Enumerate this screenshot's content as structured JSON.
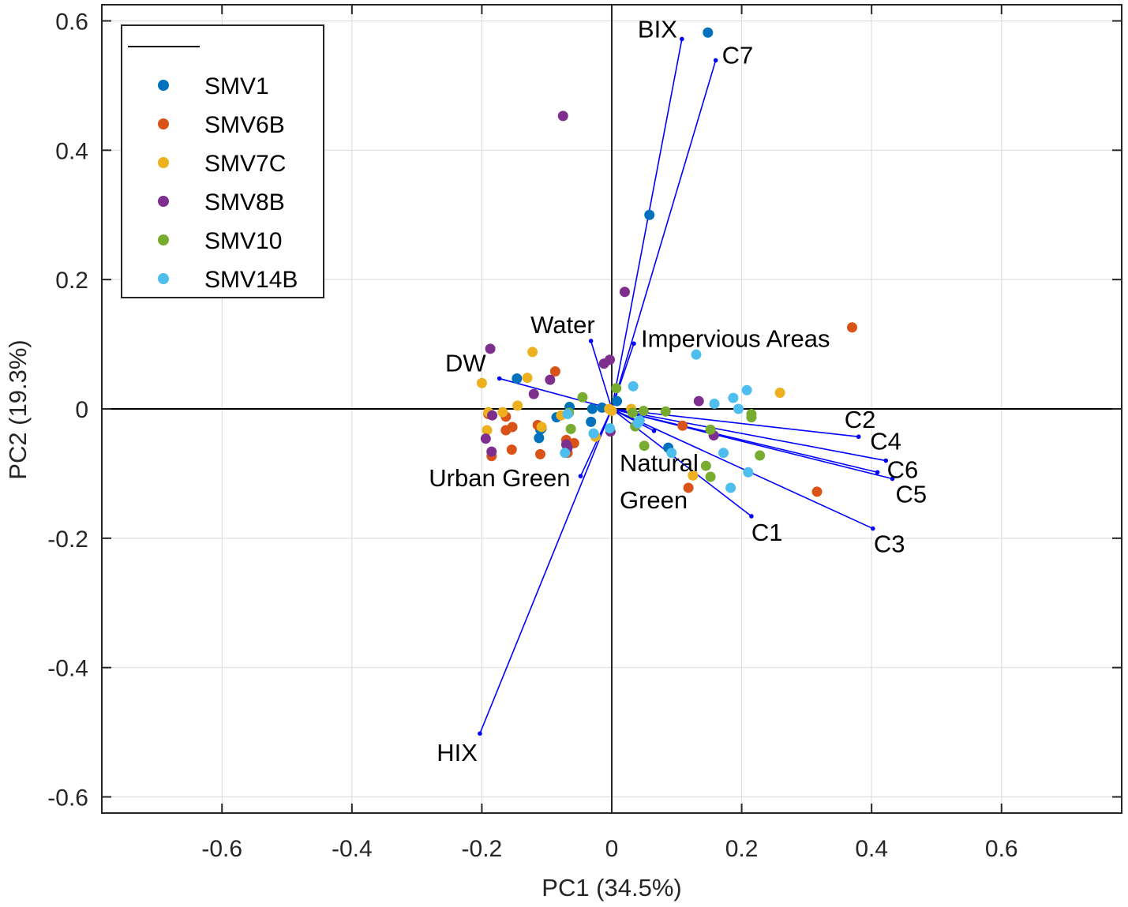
{
  "chart_data": {
    "type": "scatter",
    "subtype": "pca-biplot",
    "title": "",
    "xlabel": "PC1 (34.5%)",
    "ylabel": "PC2 (19.3%)",
    "xlim": [
      -0.785,
      0.785
    ],
    "ylim": [
      -0.625,
      0.625
    ],
    "xticks": [
      -0.6,
      -0.4,
      -0.2,
      0,
      0.2,
      0.4,
      0.6
    ],
    "yticks": [
      -0.6,
      -0.4,
      -0.2,
      0,
      0.2,
      0.4,
      0.6
    ],
    "xtick_labels": [
      "-0.6",
      "-0.4",
      "-0.2",
      "0",
      "0.2",
      "0.4",
      "0.6"
    ],
    "ytick_labels": [
      "-0.6",
      "-0.4",
      "-0.2",
      "0",
      "0.2",
      "0.4",
      "0.6"
    ],
    "grid": true,
    "legend_position": "top-left",
    "loadings_color": "#0000ff",
    "loadings": [
      {
        "name": "BIX",
        "x": 0.108,
        "y": 0.572
      },
      {
        "name": "C7",
        "x": 0.16,
        "y": 0.539
      },
      {
        "name": "Water",
        "x": -0.032,
        "y": 0.105
      },
      {
        "name": "Impervious Areas",
        "x": 0.034,
        "y": 0.101
      },
      {
        "name": "DW",
        "x": -0.173,
        "y": 0.047
      },
      {
        "name": "C2",
        "x": 0.38,
        "y": -0.043
      },
      {
        "name": "C4",
        "x": 0.422,
        "y": -0.08
      },
      {
        "name": "C6",
        "x": 0.409,
        "y": -0.098
      },
      {
        "name": "C5",
        "x": 0.432,
        "y": -0.108
      },
      {
        "name": "C3",
        "x": 0.402,
        "y": -0.185
      },
      {
        "name": "C1",
        "x": 0.215,
        "y": -0.166
      },
      {
        "name": "Natural Green",
        "x": 0.065,
        "y": -0.034
      },
      {
        "name": "Urban Green",
        "x": -0.048,
        "y": -0.104
      },
      {
        "name": "HIX",
        "x": -0.203,
        "y": -0.502
      }
    ],
    "series": [
      {
        "name": "SMV1",
        "color": "#0072bd",
        "points": [
          [
            0.148,
            0.582
          ],
          [
            0.058,
            0.3
          ],
          [
            0.008,
            0.012
          ],
          [
            -0.015,
            0.002
          ],
          [
            -0.03,
            0.0
          ],
          [
            -0.032,
            -0.02
          ],
          [
            -0.065,
            0.003
          ],
          [
            -0.085,
            -0.013
          ],
          [
            -0.11,
            -0.032
          ],
          [
            -0.112,
            -0.045
          ],
          [
            -0.108,
            -0.03
          ],
          [
            -0.146,
            0.047
          ],
          [
            0.087,
            -0.06
          ]
        ]
      },
      {
        "name": "SMV6B",
        "color": "#d95319",
        "points": [
          [
            0.37,
            0.126
          ],
          [
            0.316,
            -0.128
          ],
          [
            0.109,
            -0.026
          ],
          [
            0.118,
            -0.122
          ],
          [
            -0.087,
            0.058
          ],
          [
            -0.07,
            -0.048
          ],
          [
            -0.068,
            -0.068
          ],
          [
            -0.058,
            -0.053
          ],
          [
            -0.11,
            -0.07
          ],
          [
            -0.114,
            -0.025
          ],
          [
            -0.154,
            -0.063
          ],
          [
            -0.163,
            -0.033
          ],
          [
            -0.163,
            -0.012
          ],
          [
            -0.185,
            -0.073
          ],
          [
            -0.19,
            -0.008
          ],
          [
            -0.153,
            -0.028
          ]
        ]
      },
      {
        "name": "SMV7C",
        "color": "#edb120",
        "points": [
          [
            0.259,
            0.025
          ],
          [
            0.125,
            -0.103
          ],
          [
            -0.122,
            0.088
          ],
          [
            -0.13,
            0.048
          ],
          [
            -0.2,
            0.04
          ],
          [
            -0.145,
            0.005
          ],
          [
            -0.19,
            -0.005
          ],
          [
            -0.192,
            -0.033
          ],
          [
            -0.108,
            -0.028
          ],
          [
            -0.025,
            -0.043
          ],
          [
            0.0,
            -0.003
          ],
          [
            -0.004,
            0.0
          ],
          [
            0.03,
            0.0
          ],
          [
            -0.168,
            -0.005
          ],
          [
            -0.078,
            -0.01
          ]
        ]
      },
      {
        "name": "SMV8B",
        "color": "#7e2f8e",
        "points": [
          [
            -0.075,
            0.453
          ],
          [
            0.02,
            0.181
          ],
          [
            -0.187,
            0.093
          ],
          [
            -0.095,
            0.045
          ],
          [
            -0.12,
            0.023
          ],
          [
            -0.012,
            0.07
          ],
          [
            -0.003,
            0.076
          ],
          [
            -0.07,
            -0.055
          ],
          [
            -0.068,
            -0.06
          ],
          [
            0.134,
            0.012
          ],
          [
            0.157,
            -0.041
          ],
          [
            -0.194,
            -0.046
          ],
          [
            -0.185,
            -0.066
          ],
          [
            -0.184,
            -0.01
          ],
          [
            -0.002,
            -0.035
          ]
        ]
      },
      {
        "name": "SMV10",
        "color": "#77ac30",
        "points": [
          [
            0.007,
            0.032
          ],
          [
            0.049,
            -0.003
          ],
          [
            -0.045,
            0.018
          ],
          [
            0.032,
            -0.006
          ],
          [
            0.083,
            -0.004
          ],
          [
            0.05,
            -0.057
          ],
          [
            0.215,
            -0.008
          ],
          [
            0.215,
            -0.013
          ],
          [
            0.228,
            -0.072
          ],
          [
            0.152,
            -0.032
          ],
          [
            0.145,
            -0.088
          ],
          [
            0.152,
            -0.105
          ],
          [
            0.036,
            -0.027
          ],
          [
            -0.063,
            -0.031
          ],
          [
            -0.066,
            -0.006
          ]
        ]
      },
      {
        "name": "SMV14B",
        "color": "#4dbeee",
        "points": [
          [
            0.13,
            0.084
          ],
          [
            0.033,
            0.035
          ],
          [
            0.208,
            0.029
          ],
          [
            0.187,
            0.017
          ],
          [
            0.158,
            0.008
          ],
          [
            0.195,
            0.0
          ],
          [
            0.172,
            -0.068
          ],
          [
            0.21,
            -0.098
          ],
          [
            0.183,
            -0.122
          ],
          [
            0.092,
            -0.068
          ],
          [
            -0.003,
            -0.03
          ],
          [
            -0.028,
            -0.038
          ],
          [
            -0.068,
            -0.008
          ],
          [
            0.043,
            -0.018
          ],
          [
            -0.072,
            -0.068
          ],
          [
            0.04,
            -0.022
          ]
        ]
      }
    ]
  }
}
